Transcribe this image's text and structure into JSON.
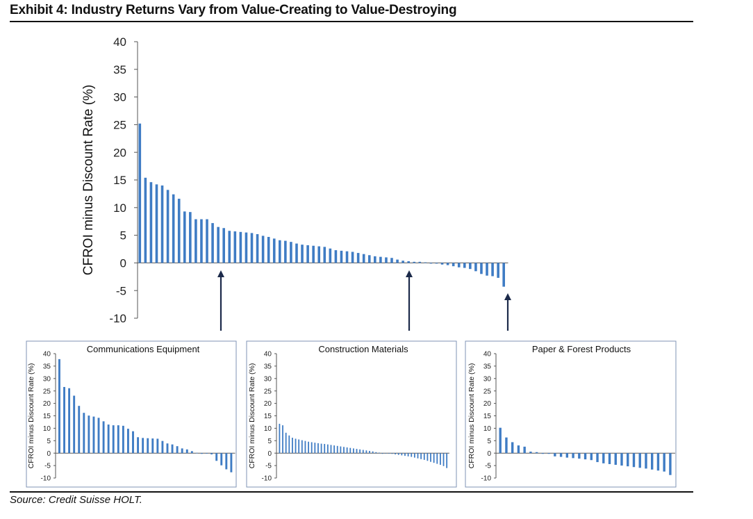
{
  "title": "Exhibit 4: Industry Returns Vary from Value-Creating to Value-Destroying",
  "source": "Source: Credit Suisse HOLT.",
  "colors": {
    "bar": "#3f7cc4",
    "axis": "#555555",
    "arrow": "#1c2a4a",
    "panel_border": "#7f93b5",
    "text": "#111111"
  },
  "chart_data": [
    {
      "type": "bar",
      "title": "",
      "ylabel": "CFROI minus Discount Rate (%)",
      "ylim": [
        -10,
        40
      ],
      "yticks": [
        40,
        35,
        30,
        25,
        20,
        15,
        10,
        5,
        0,
        -5,
        -10
      ],
      "values": [
        25.2,
        15.4,
        14.6,
        14.2,
        14.0,
        13.2,
        12.4,
        11.6,
        9.3,
        9.2,
        7.9,
        7.9,
        7.9,
        7.2,
        6.5,
        6.3,
        5.8,
        5.7,
        5.6,
        5.5,
        5.4,
        5.2,
        4.9,
        4.7,
        4.4,
        4.1,
        4.0,
        3.8,
        3.5,
        3.3,
        3.2,
        3.1,
        3.0,
        2.9,
        2.6,
        2.3,
        2.2,
        2.1,
        2.0,
        1.8,
        1.6,
        1.4,
        1.2,
        1.1,
        1.0,
        0.9,
        0.6,
        0.4,
        0.3,
        0.2,
        0.2,
        0.1,
        0.0,
        0.0,
        -0.3,
        -0.4,
        -0.6,
        -0.8,
        -0.9,
        -1.1,
        -1.5,
        -2.0,
        -2.3,
        -2.4,
        -2.7,
        -4.3
      ],
      "highlights": [
        {
          "name": "Communications Equipment",
          "index": 15
        },
        {
          "name": "Construction Materials",
          "index": 50
        },
        {
          "name": "Paper & Forest Products",
          "index": 65
        }
      ]
    },
    {
      "type": "bar",
      "title": "Communications Equipment",
      "ylabel": "CFROI minus Discount Rate (%)",
      "ylim": [
        -10,
        40
      ],
      "yticks": [
        40,
        35,
        30,
        25,
        20,
        15,
        10,
        5,
        0,
        -5,
        -10
      ],
      "values": [
        37.8,
        26.6,
        26.1,
        23.1,
        19.0,
        16.2,
        15.1,
        14.7,
        14.2,
        12.8,
        11.5,
        11.2,
        11.2,
        11.0,
        9.8,
        8.8,
        6.4,
        6.1,
        6.0,
        5.9,
        5.8,
        4.9,
        3.9,
        3.5,
        2.8,
        1.9,
        1.5,
        0.8,
        0.1,
        0.0,
        -0.2,
        -0.5,
        -3.1,
        -4.9,
        -6.5,
        -7.7
      ]
    },
    {
      "type": "bar",
      "title": "Construction Materials",
      "ylabel": "CFROI minus Discount Rate (%)",
      "ylim": [
        -10,
        40
      ],
      "yticks": [
        40,
        35,
        30,
        25,
        20,
        15,
        10,
        5,
        0,
        -5,
        -10
      ],
      "values": [
        11.8,
        11.2,
        8.2,
        7.1,
        6.2,
        5.8,
        5.5,
        5.2,
        4.9,
        4.6,
        4.4,
        4.2,
        4.0,
        3.8,
        3.7,
        3.5,
        3.3,
        3.1,
        2.9,
        2.7,
        2.5,
        2.3,
        2.1,
        1.9,
        1.7,
        1.5,
        1.3,
        1.1,
        0.9,
        0.7,
        0.4,
        0.2,
        0.0,
        -0.1,
        -0.2,
        -0.3,
        -0.5,
        -0.7,
        -0.9,
        -1.1,
        -1.3,
        -1.5,
        -1.8,
        -2.1,
        -2.4,
        -2.7,
        -3.1,
        -3.5,
        -3.9,
        -4.3,
        -4.7,
        -5.2,
        -6.0
      ]
    },
    {
      "type": "bar",
      "title": "Paper & Forest Products",
      "ylabel": "CFROI minus Discount Rate (%)",
      "ylim": [
        -10,
        40
      ],
      "yticks": [
        40,
        35,
        30,
        25,
        20,
        15,
        10,
        5,
        0,
        -5,
        -10
      ],
      "values": [
        10.2,
        6.3,
        4.4,
        3.1,
        2.6,
        0.6,
        0.4,
        0.0,
        0.0,
        -1.3,
        -1.5,
        -1.8,
        -2.0,
        -2.2,
        -2.5,
        -2.8,
        -3.6,
        -4.1,
        -4.4,
        -4.7,
        -5.0,
        -5.3,
        -5.6,
        -5.9,
        -6.2,
        -6.6,
        -7.0,
        -7.4,
        -8.8
      ]
    }
  ]
}
